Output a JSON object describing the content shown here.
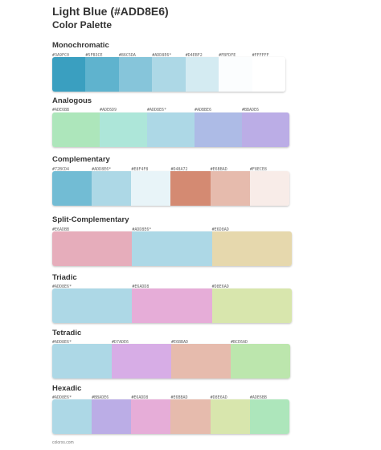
{
  "header": {
    "title": "Light Blue (#ADD8E6)",
    "subtitle": "Color Palette"
  },
  "sections": [
    {
      "name": "Monochromatic",
      "colors": [
        "#3A9FC0",
        "#5FB3CE",
        "#86C5DA",
        "#ADD8E6*",
        "#D4EBF2",
        "#FBFDFE",
        "#FFFFFF"
      ],
      "hex": [
        "#3A9FC0",
        "#5FB3CE",
        "#86C5DA",
        "#ADD8E6",
        "#D4EBF2",
        "#FBFDFE",
        "#FFFFFF"
      ]
    },
    {
      "name": "Analogous",
      "colors": [
        "#ADE6BB",
        "#ADE6D9",
        "#ADD8E6*",
        "#ADBBE6",
        "#BBADE6"
      ],
      "hex": [
        "#ADE6BB",
        "#ADE6D9",
        "#ADD8E6",
        "#ADBBE6",
        "#BBADE6"
      ]
    },
    {
      "name": "Complementary",
      "colors": [
        "#72BCD4",
        "#ADD8E6*",
        "#E8F4F8",
        "#D48A72",
        "#E6BBAD",
        "#F8ECE8"
      ],
      "hex": [
        "#72BCD4",
        "#ADD8E6",
        "#E8F4F8",
        "#D48A72",
        "#E6BBAD",
        "#F8ECE8"
      ]
    },
    {
      "name": "Split-Complementary",
      "colors": [
        "#E6ADBB",
        "#ADD8E6*",
        "#E6D8AD"
      ],
      "hex": [
        "#E6ADBB",
        "#ADD8E6",
        "#E6D8AD"
      ]
    },
    {
      "name": "Triadic",
      "colors": [
        "#ADD8E6*",
        "#E6ADD8",
        "#D8E6AD"
      ],
      "hex": [
        "#ADD8E6",
        "#E6ADD8",
        "#D8E6AD"
      ]
    },
    {
      "name": "Tetradic",
      "colors": [
        "#ADD8E6*",
        "#D7ADE6",
        "#E6BBAD",
        "#BCE6AD"
      ],
      "hex": [
        "#ADD8E6",
        "#D7ADE6",
        "#E6BBAD",
        "#BCE6AD"
      ]
    },
    {
      "name": "Hexadic",
      "colors": [
        "#ADD8E6*",
        "#BBADE6",
        "#E6ADD8",
        "#E6BBAD",
        "#D8E6AD",
        "#ADE6BB"
      ],
      "hex": [
        "#ADD8E6",
        "#BBADE6",
        "#E6ADD8",
        "#E6BBAD",
        "#D8E6AD",
        "#ADE6BB"
      ]
    }
  ],
  "footer": "colorxs.com"
}
